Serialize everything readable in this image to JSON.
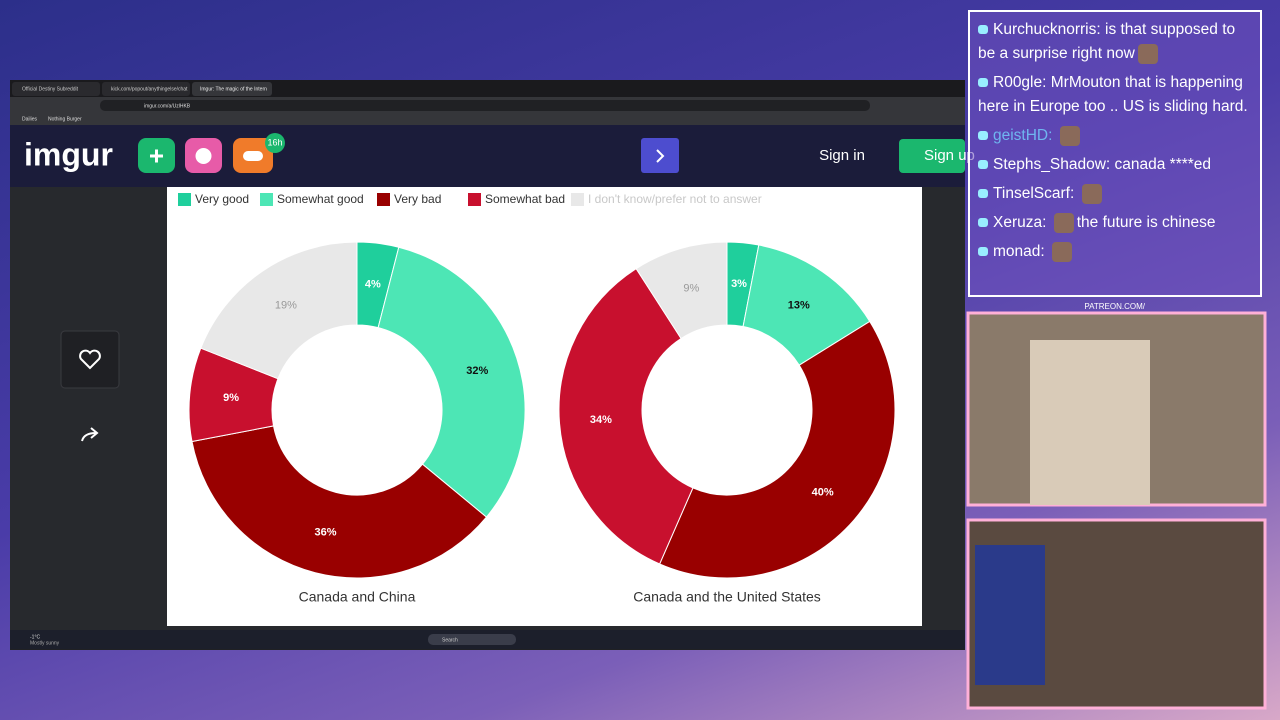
{
  "browser": {
    "tabs": [
      "Official Destiny Subreddit",
      "kick.com/popout/anythingelse/chat",
      "Imgur: The magic of the Intern"
    ],
    "address": "imgur.com/a/UzlHKB",
    "bookmarks": [
      "Dailies",
      "Nothing Burger"
    ]
  },
  "imgur": {
    "logo": "imgur",
    "badge": "16h",
    "sign_in": "Sign in",
    "sign_up": "Sign up"
  },
  "chart_data": {
    "type": "donut",
    "categories": [
      "Very good",
      "Somewhat good",
      "Very bad",
      "Somewhat bad",
      "I don't know/prefer not to answer"
    ],
    "colors": [
      "#1fcf9c",
      "#4de6b5",
      "#990000",
      "#c8102e",
      "#e8e8e8"
    ],
    "series": [
      {
        "name": "Canada and China",
        "values": [
          4,
          32,
          36,
          9,
          19
        ],
        "value_labels": [
          "4%",
          "32%",
          "36%",
          "9%",
          "19%"
        ]
      },
      {
        "name": "Canada and the United States",
        "values": [
          3,
          13,
          40,
          34,
          9
        ],
        "value_labels": [
          "3%",
          "13%",
          "40%",
          "34%",
          "9%"
        ]
      }
    ]
  },
  "chat": [
    {
      "user": "Kurchucknorris:",
      "text": "is that supposed to be a surprise right now"
    },
    {
      "user": "R00gle:",
      "text": "MrMouton that is happening here in Europe too .. US is sliding hard."
    },
    {
      "user": "geistHD:"
    },
    {
      "user": "Stephs_Shadow:",
      "text": "canada ****ed"
    },
    {
      "user": "TinselScarf:"
    },
    {
      "user": "Xeruza:",
      "text": "the future is chinese"
    },
    {
      "user": "monad:"
    }
  ],
  "overlay": {
    "patreon": "PATREON.COM/"
  },
  "taskbar": {
    "temperature": "-1°C",
    "weather": "Mostly sunny",
    "search": "Search"
  }
}
